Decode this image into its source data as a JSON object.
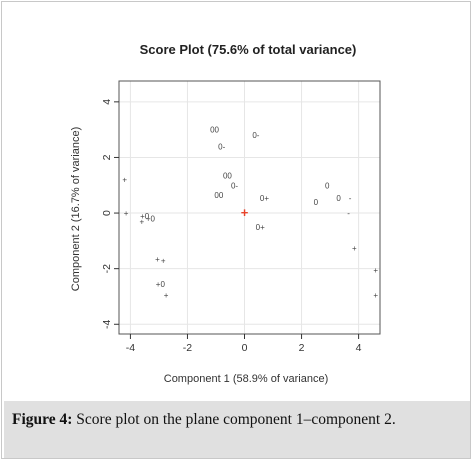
{
  "chart_data": {
    "type": "scatter",
    "title": "Score Plot (75.6% of total variance)",
    "xlabel": "Component 1 (58.9% of variance)",
    "ylabel": "Component 2 (16.7% of variance)",
    "xlim": [
      -4.4,
      4.75
    ],
    "ylim": [
      -4.35,
      4.75
    ],
    "xticks": [
      "-4",
      "-2",
      "0",
      "2",
      "4"
    ],
    "yticks": [
      "-4",
      "-2",
      "0",
      "2",
      "4"
    ],
    "xtick_values": [
      -4,
      -2,
      0,
      2,
      4
    ],
    "ytick_values": [
      -4,
      -2,
      0,
      2,
      4
    ],
    "grid": true,
    "points": [
      {
        "x": -4.2,
        "y": 1.2,
        "label": "+"
      },
      {
        "x": -4.15,
        "y": 0.0,
        "label": "+"
      },
      {
        "x": -3.6,
        "y": -0.3,
        "label": "+"
      },
      {
        "x": -3.5,
        "y": -0.1,
        "label": "+0"
      },
      {
        "x": -3.3,
        "y": -0.2,
        "label": "+0"
      },
      {
        "x": -3.05,
        "y": -1.65,
        "label": "+"
      },
      {
        "x": -2.85,
        "y": -1.7,
        "label": "+"
      },
      {
        "x": -2.95,
        "y": -2.55,
        "label": "+0"
      },
      {
        "x": -2.75,
        "y": -2.95,
        "label": "+"
      },
      {
        "x": -1.05,
        "y": 3.0,
        "label": "00"
      },
      {
        "x": -0.8,
        "y": 2.4,
        "label": "0-"
      },
      {
        "x": -0.6,
        "y": 1.35,
        "label": "00"
      },
      {
        "x": -0.35,
        "y": 1.0,
        "label": "0-"
      },
      {
        "x": -0.9,
        "y": 0.65,
        "label": "00"
      },
      {
        "x": 0.4,
        "y": 2.8,
        "label": "0-"
      },
      {
        "x": 0.7,
        "y": 0.55,
        "label": "0+"
      },
      {
        "x": 0.55,
        "y": -0.5,
        "label": "0+"
      },
      {
        "x": 2.5,
        "y": 0.4,
        "label": "0"
      },
      {
        "x": 2.9,
        "y": 1.0,
        "label": "0"
      },
      {
        "x": 3.3,
        "y": 0.55,
        "label": "0"
      },
      {
        "x": 3.7,
        "y": 0.55,
        "label": "-"
      },
      {
        "x": 3.65,
        "y": 0.0,
        "label": "-"
      },
      {
        "x": 3.85,
        "y": -1.25,
        "label": "+"
      },
      {
        "x": 4.6,
        "y": -2.05,
        "label": "+"
      },
      {
        "x": 4.6,
        "y": -2.95,
        "label": "+"
      }
    ],
    "centroid": {
      "x": 0,
      "y": 0,
      "label": "+",
      "color": "#e8432a"
    }
  },
  "caption": {
    "label": "Figure 4:",
    "text": " Score plot on the plane component 1–component 2."
  },
  "colors": {
    "points": "#444444",
    "grid": "#e6e6e6",
    "axis": "#333333",
    "caption_background": "#e0e0e0"
  }
}
